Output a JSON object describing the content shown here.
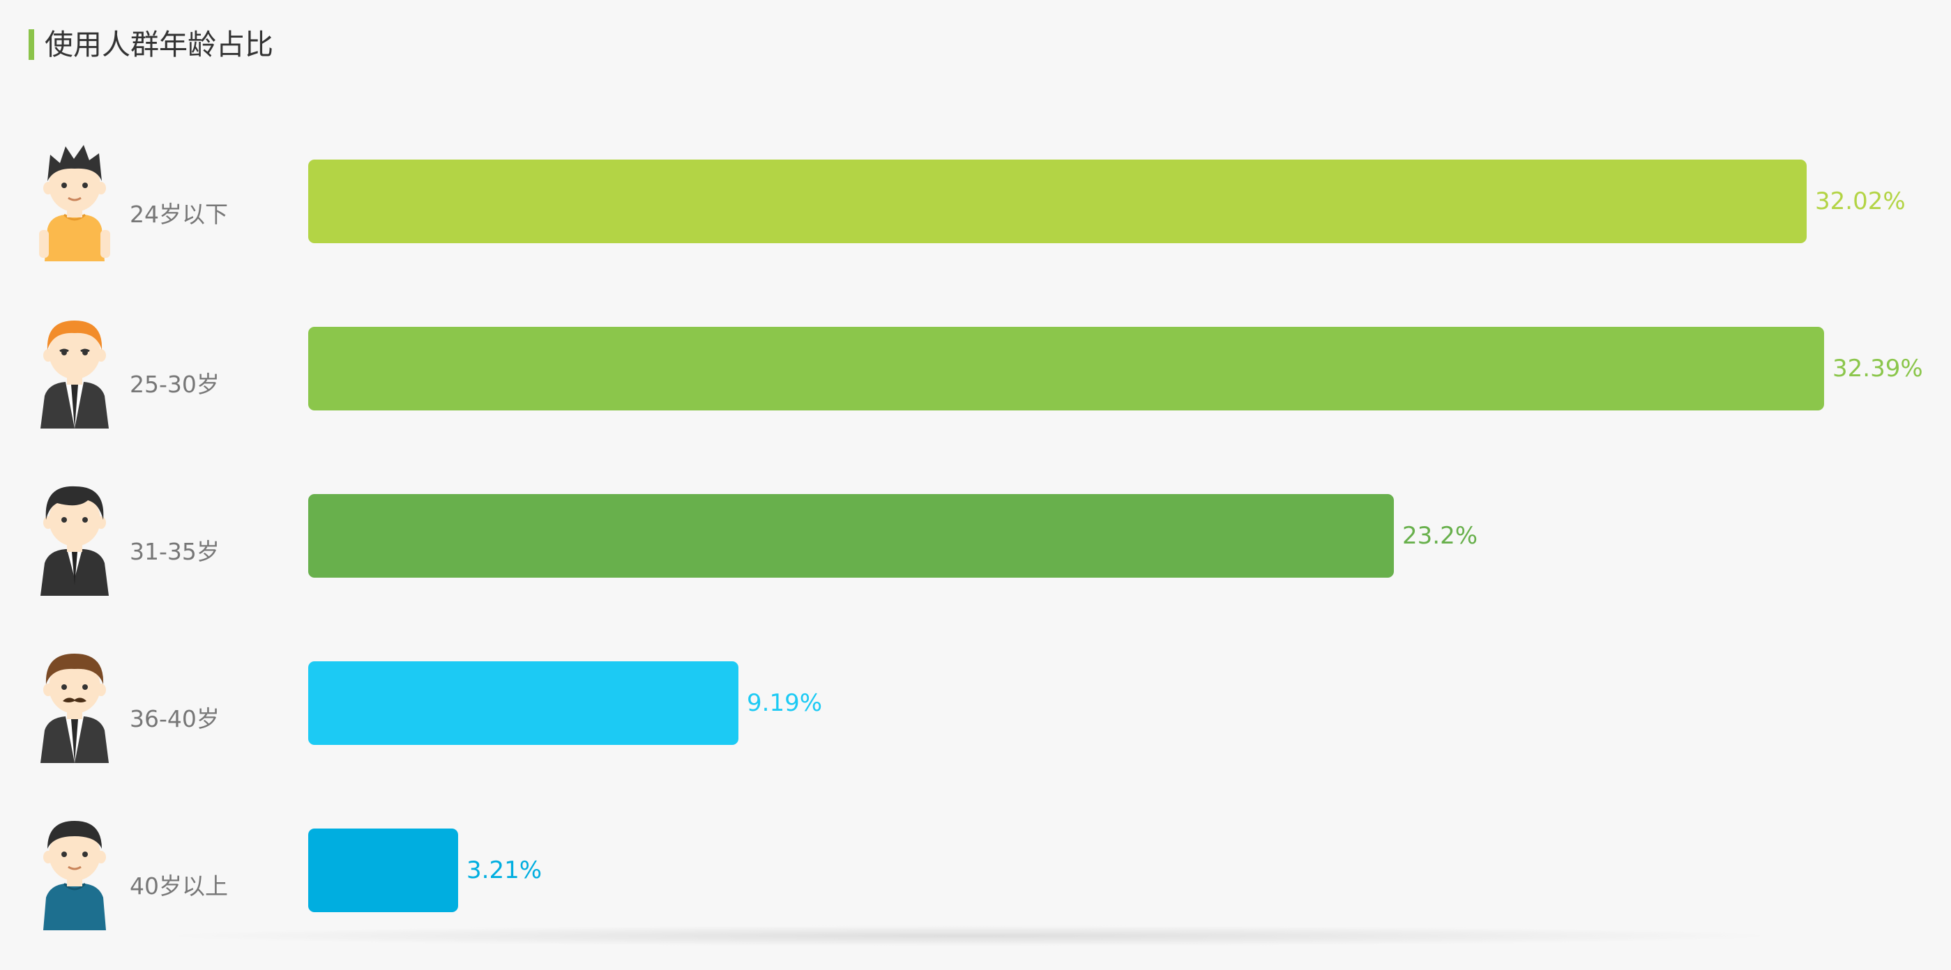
{
  "title": "使用人群年龄占比",
  "colors": {
    "accent": "#8bc34a",
    "title_text": "#333333",
    "label_text": "#777777"
  },
  "chart_data": {
    "type": "bar",
    "orientation": "horizontal",
    "title": "使用人群年龄占比",
    "xlim": [
      0,
      32.39
    ],
    "grid": false,
    "categories": [
      "24岁以下",
      "25-30岁",
      "31-35岁",
      "36-40岁",
      "40岁以上"
    ],
    "values": [
      32.02,
      32.39,
      23.2,
      9.19,
      3.21
    ],
    "value_labels": [
      "32.02%",
      "32.39%",
      "23.2%",
      "9.19%",
      "3.21%"
    ],
    "bar_colors": [
      "#b3d445",
      "#8bc64b",
      "#68b04c",
      "#1ccaf4",
      "#00aee0"
    ],
    "label_colors": [
      "#b3d445",
      "#8bc64b",
      "#68b04c",
      "#1ccaf4",
      "#00aee0"
    ],
    "avatars": [
      "young-man-yellow-shirt-icon",
      "ginger-man-suit-icon",
      "businessman-suit-icon",
      "mustache-man-suit-icon",
      "older-man-blue-shirt-icon"
    ]
  }
}
